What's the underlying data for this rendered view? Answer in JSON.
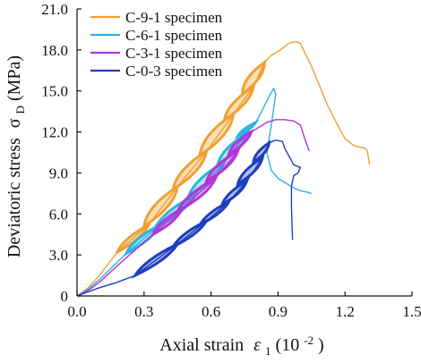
{
  "chart_data": {
    "type": "line",
    "xlabel": {
      "main": "Axial strain",
      "symbol": "ε",
      "sub": "1",
      "unit": "(10",
      "sup": "-2",
      "close": ")"
    },
    "ylabel": {
      "main": "Deviatoric stress",
      "symbol": "σ",
      "sub": "D",
      "unit": "(MPa)"
    },
    "xlim": [
      0,
      1.5
    ],
    "ylim": [
      0,
      21
    ],
    "x_ticks": [
      "0.0",
      "0.3",
      "0.6",
      "0.9",
      "1.2",
      "1.5"
    ],
    "y_ticks": [
      "0",
      "3.0",
      "6.0",
      "9.0",
      "12.0",
      "15.0",
      "18.0",
      "21.0"
    ],
    "legend_position": "top-left",
    "series": [
      {
        "name": "C-9-1 specimen",
        "color": "#f0a030",
        "loading_cycles": [
          {
            "from": [
              0.18,
              3.2
            ],
            "to": [
              0.32,
              5.2
            ]
          },
          {
            "from": [
              0.3,
              5.1
            ],
            "to": [
              0.45,
              8.0
            ]
          },
          {
            "from": [
              0.43,
              7.8
            ],
            "to": [
              0.58,
              10.6
            ]
          },
          {
            "from": [
              0.55,
              10.3
            ],
            "to": [
              0.7,
              13.3
            ]
          },
          {
            "from": [
              0.66,
              12.9
            ],
            "to": [
              0.79,
              15.3
            ]
          },
          {
            "from": [
              0.74,
              14.8
            ],
            "to": [
              0.84,
              17.1
            ]
          }
        ],
        "envelope": [
          [
            0,
            0
          ],
          [
            0.05,
            0.6
          ],
          [
            0.1,
            1.5
          ],
          [
            0.18,
            3.2
          ],
          [
            0.32,
            5.2
          ],
          [
            0.45,
            8.0
          ],
          [
            0.58,
            10.6
          ],
          [
            0.7,
            13.3
          ],
          [
            0.79,
            15.3
          ],
          [
            0.84,
            17.1
          ],
          [
            0.87,
            17.6
          ],
          [
            0.91,
            18.0
          ],
          [
            0.95,
            18.5
          ],
          [
            0.98,
            18.6
          ],
          [
            1.0,
            18.5
          ],
          [
            1.02,
            17.8
          ],
          [
            1.05,
            16.8
          ],
          [
            1.08,
            15.6
          ],
          [
            1.12,
            14.0
          ],
          [
            1.17,
            12.4
          ],
          [
            1.2,
            11.5
          ],
          [
            1.24,
            11.0
          ],
          [
            1.29,
            10.8
          ],
          [
            1.3,
            10.6
          ],
          [
            1.31,
            9.6
          ]
        ]
      },
      {
        "name": "C-6-1 specimen",
        "color": "#29b6e0",
        "loading_cycles": [
          {
            "from": [
              0.22,
              3.1
            ],
            "to": [
              0.37,
              5.2
            ]
          },
          {
            "from": [
              0.35,
              5.0
            ],
            "to": [
              0.53,
              7.4
            ]
          },
          {
            "from": [
              0.5,
              7.3
            ],
            "to": [
              0.66,
              9.8
            ]
          },
          {
            "from": [
              0.63,
              9.6
            ],
            "to": [
              0.76,
              11.9
            ]
          },
          {
            "from": [
              0.72,
              11.7
            ],
            "to": [
              0.8,
              12.7
            ]
          }
        ],
        "envelope": [
          [
            0,
            0
          ],
          [
            0.05,
            0.5
          ],
          [
            0.1,
            1.2
          ],
          [
            0.22,
            3.1
          ],
          [
            0.37,
            5.2
          ],
          [
            0.53,
            7.4
          ],
          [
            0.66,
            9.8
          ],
          [
            0.76,
            11.9
          ],
          [
            0.8,
            12.7
          ],
          [
            0.83,
            13.6
          ],
          [
            0.86,
            14.6
          ],
          [
            0.88,
            15.2
          ],
          [
            0.89,
            14.8
          ],
          [
            0.87,
            12.5
          ],
          [
            0.85,
            10.5
          ],
          [
            0.87,
            9.2
          ],
          [
            0.9,
            8.6
          ],
          [
            0.93,
            8.3
          ],
          [
            0.97,
            7.9
          ],
          [
            1.0,
            7.7
          ],
          [
            1.03,
            7.6
          ],
          [
            1.05,
            7.5
          ]
        ]
      },
      {
        "name": "C-3-1 specimen",
        "color": "#b236d6",
        "loading_cycles": [
          {
            "from": [
              0.34,
              4.5
            ],
            "to": [
              0.47,
              6.4
            ]
          },
          {
            "from": [
              0.45,
              6.2
            ],
            "to": [
              0.62,
              8.6
            ]
          },
          {
            "from": [
              0.58,
              8.4
            ],
            "to": [
              0.72,
              10.6
            ]
          },
          {
            "from": [
              0.68,
              10.4
            ],
            "to": [
              0.78,
              12.0
            ]
          }
        ],
        "envelope": [
          [
            0,
            0
          ],
          [
            0.05,
            0.4
          ],
          [
            0.1,
            1.0
          ],
          [
            0.2,
            2.5
          ],
          [
            0.34,
            4.5
          ],
          [
            0.47,
            6.4
          ],
          [
            0.62,
            8.6
          ],
          [
            0.72,
            10.6
          ],
          [
            0.78,
            12.0
          ],
          [
            0.81,
            12.3
          ],
          [
            0.85,
            12.7
          ],
          [
            0.89,
            12.9
          ],
          [
            0.93,
            12.9
          ],
          [
            0.97,
            12.8
          ],
          [
            1.0,
            12.5
          ],
          [
            1.02,
            11.5
          ],
          [
            1.04,
            10.6
          ]
        ]
      },
      {
        "name": "C-0-3 specimen",
        "color": "#1f3fbf",
        "loading_cycles": [
          {
            "from": [
              0.26,
              1.5
            ],
            "to": [
              0.45,
              3.8
            ]
          },
          {
            "from": [
              0.43,
              3.6
            ],
            "to": [
              0.58,
              5.5
            ]
          },
          {
            "from": [
              0.55,
              5.2
            ],
            "to": [
              0.68,
              6.9
            ]
          },
          {
            "from": [
              0.65,
              6.7
            ],
            "to": [
              0.76,
              8.4
            ]
          },
          {
            "from": [
              0.72,
              8.2
            ],
            "to": [
              0.83,
              10.1
            ]
          },
          {
            "from": [
              0.79,
              9.8
            ],
            "to": [
              0.86,
              11.2
            ]
          }
        ],
        "envelope": [
          [
            0,
            0
          ],
          [
            0.05,
            0.3
          ],
          [
            0.1,
            0.6
          ],
          [
            0.18,
            1.0
          ],
          [
            0.26,
            1.5
          ],
          [
            0.45,
            3.8
          ],
          [
            0.58,
            5.5
          ],
          [
            0.68,
            6.9
          ],
          [
            0.76,
            8.4
          ],
          [
            0.83,
            10.1
          ],
          [
            0.86,
            11.2
          ],
          [
            0.89,
            11.4
          ],
          [
            0.92,
            11.3
          ],
          [
            0.93,
            10.8
          ],
          [
            0.95,
            10.2
          ],
          [
            0.97,
            9.6
          ],
          [
            1.0,
            9.4
          ],
          [
            0.99,
            9.0
          ],
          [
            0.97,
            8.8
          ],
          [
            0.96,
            8.0
          ],
          [
            0.96,
            6.5
          ],
          [
            0.965,
            4.1
          ]
        ]
      }
    ]
  }
}
